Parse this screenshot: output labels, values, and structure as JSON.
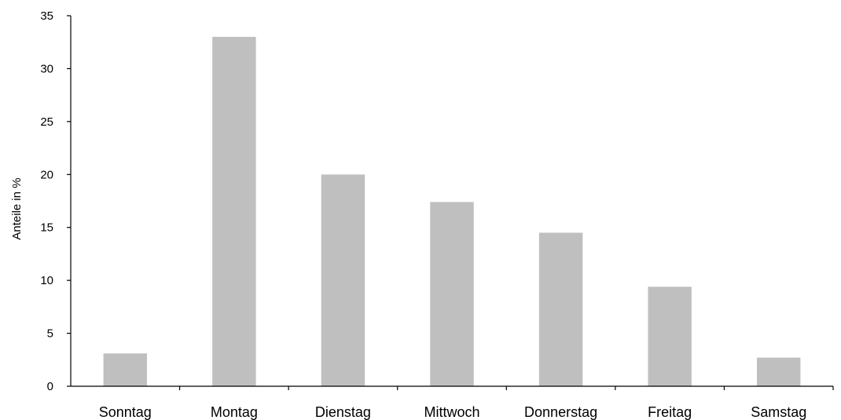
{
  "chart_data": {
    "type": "bar",
    "title": "",
    "xlabel": "",
    "ylabel": "Anteile in %",
    "categories": [
      "Sonntag",
      "Montag",
      "Dienstag",
      "Mittwoch",
      "Donnerstag",
      "Freitag",
      "Samstag"
    ],
    "values": [
      3.1,
      33.0,
      20.0,
      17.4,
      14.5,
      9.4,
      2.7
    ],
    "ylim": [
      0,
      35
    ],
    "yticks": [
      "0",
      "5",
      "10",
      "15",
      "20",
      "25",
      "30",
      "35"
    ],
    "grid": false,
    "legend": "none",
    "bar_color": "#bfbfbf",
    "axis_color": "#000000"
  }
}
